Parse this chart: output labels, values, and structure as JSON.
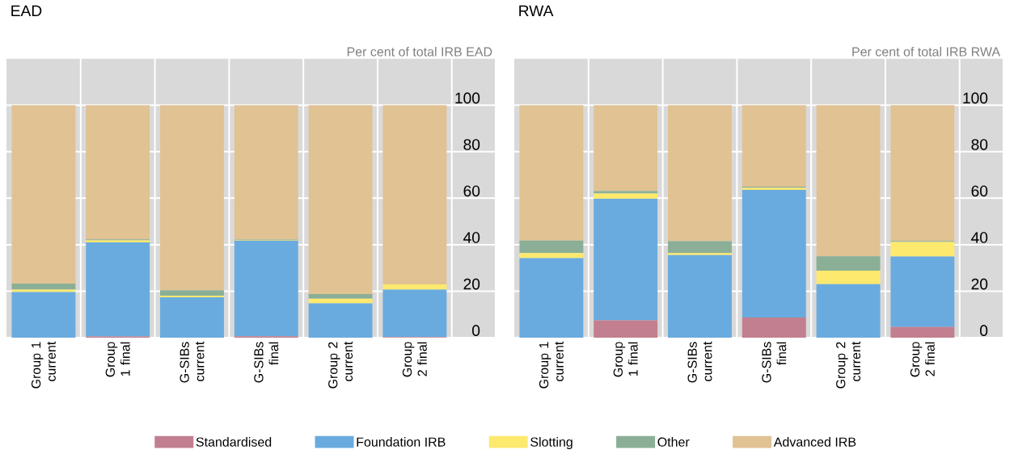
{
  "chart_data": [
    {
      "type": "bar",
      "title": "EAD",
      "ylabel": "Per cent of total IRB EAD",
      "stacked": true,
      "categories": [
        "Group 1 current",
        "Group 1 final",
        "G-SIBs current",
        "G-SIBs final",
        "Group 2 current",
        "Group 2 final"
      ],
      "ylim": [
        0,
        120
      ],
      "yticks": [
        0,
        20,
        40,
        60,
        80,
        100
      ],
      "grid": "y",
      "legend": "bottom",
      "series": [
        {
          "name": "Standardised",
          "color": "#c27f8f",
          "values": [
            0,
            0.5,
            0,
            0.6,
            0,
            0.3
          ]
        },
        {
          "name": "Foundation IRB",
          "color": "#6aabdf",
          "values": [
            19.6,
            40.5,
            17.4,
            41.1,
            14.8,
            20.4
          ]
        },
        {
          "name": "Slotting",
          "color": "#fde96e",
          "values": [
            1.1,
            0.9,
            0.7,
            0.2,
            2.0,
            2.2
          ]
        },
        {
          "name": "Other",
          "color": "#8aaf96",
          "values": [
            2.6,
            0.4,
            2.3,
            0.3,
            2.0,
            0
          ]
        },
        {
          "name": "Advanced IRB",
          "color": "#e1c293",
          "values": [
            76.7,
            57.7,
            79.6,
            57.8,
            81.2,
            77.1
          ]
        }
      ]
    },
    {
      "type": "bar",
      "title": "RWA",
      "ylabel": "Per cent of total IRB RWA",
      "stacked": true,
      "categories": [
        "Group 1 current",
        "Group 1 final",
        "G-SIBs current",
        "G-SIBs final",
        "Group 2 current",
        "Group 2 final"
      ],
      "ylim": [
        0,
        120
      ],
      "yticks": [
        0,
        20,
        40,
        60,
        80,
        100
      ],
      "grid": "y",
      "series": [
        {
          "color": "#c27f8f",
          "values": [
            0,
            7.5,
            0,
            8.7,
            0,
            4.6
          ]
        },
        {
          "color": "#6aabdf",
          "values": [
            34.2,
            52.3,
            35.5,
            54.9,
            23.0,
            30.3
          ]
        },
        {
          "color": "#fde96e",
          "values": [
            2.2,
            2.2,
            0.9,
            0.9,
            5.8,
            6.3
          ]
        },
        {
          "color": "#8aaf96",
          "values": [
            5.4,
            1.1,
            5.1,
            0.5,
            6.2,
            0.4
          ]
        },
        {
          "color": "#e1c293",
          "values": [
            58.2,
            36.9,
            58.5,
            35.0,
            65.0,
            58.4
          ]
        }
      ]
    }
  ]
}
